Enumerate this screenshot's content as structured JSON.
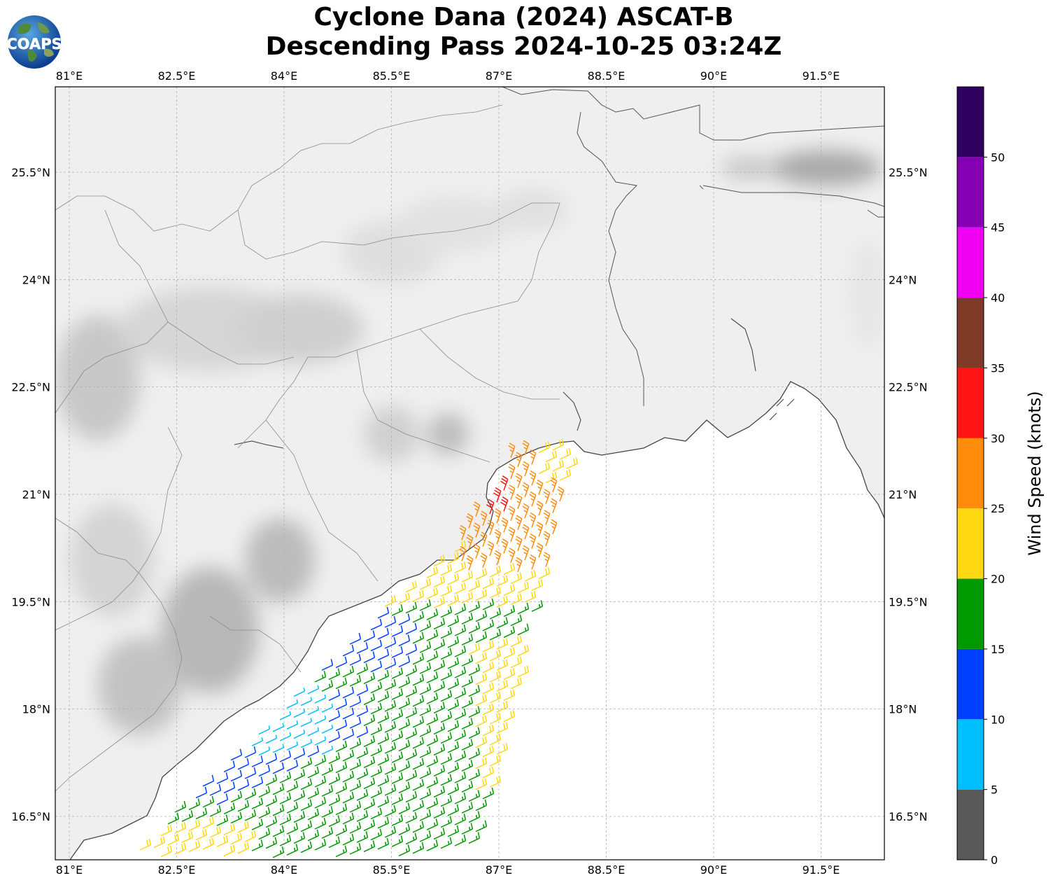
{
  "title": {
    "line1": "Cyclone Dana (2024) ASCAT-B",
    "line2": "Descending Pass 2024-10-25 03:24Z"
  },
  "logo": {
    "label": "COAPS",
    "icon": "globe-logo-icon"
  },
  "map": {
    "lon_ticks": [
      "81°E",
      "82.5°E",
      "84°E",
      "85.5°E",
      "87°E",
      "88.5°E",
      "90°E",
      "91.5°E"
    ],
    "lon_values": [
      81,
      82.5,
      84,
      85.5,
      87,
      88.5,
      90,
      91.5
    ],
    "lat_ticks": [
      "25.5°N",
      "24°N",
      "22.5°N",
      "21°N",
      "19.5°N",
      "18°N",
      "16.5°N"
    ],
    "lat_values": [
      25.5,
      24,
      22.5,
      21,
      19.5,
      18,
      16.5
    ],
    "extent": {
      "lon_min": 80.8,
      "lon_max": 92.4,
      "lat_min": 15.9,
      "lat_max": 26.7
    },
    "gridlines": true,
    "wind_field": {
      "pass": "Descending",
      "units": "knots",
      "regions": [
        {
          "area": "western swath near 83-85°E, 17-18°N",
          "speed_range_kt": [
            5,
            15
          ]
        },
        {
          "area": "open bay 84-87.5°E, 16-19°N",
          "speed_range_kt": [
            15,
            20
          ]
        },
        {
          "area": "eastern swath edge 87-87.5°E, 16.5-18.5°N",
          "speed_range_kt": [
            20,
            25
          ]
        },
        {
          "area": "coastal band 85.5-87.5°E, 19.5-20°N",
          "speed_range_kt": [
            20,
            25
          ]
        },
        {
          "area": "near coast 87-88°E, 20-21.5°N",
          "speed_range_kt": [
            25,
            30
          ]
        },
        {
          "area": "core near 87°E, 20.9°N",
          "speed_range_kt": [
            30,
            35
          ]
        }
      ]
    }
  },
  "colorbar": {
    "label": "Wind Speed (knots)",
    "ticks": [
      "0",
      "5",
      "10",
      "15",
      "20",
      "25",
      "30",
      "35",
      "40",
      "45",
      "50"
    ],
    "bins": [
      {
        "min": 0,
        "max": 5,
        "color": "#595959"
      },
      {
        "min": 5,
        "max": 10,
        "color": "#00bfff"
      },
      {
        "min": 10,
        "max": 15,
        "color": "#0040ff"
      },
      {
        "min": 15,
        "max": 20,
        "color": "#009900"
      },
      {
        "min": 20,
        "max": 25,
        "color": "#ffd814"
      },
      {
        "min": 25,
        "max": 30,
        "color": "#ff8c0a"
      },
      {
        "min": 30,
        "max": 35,
        "color": "#ff1414"
      },
      {
        "min": 35,
        "max": 40,
        "color": "#7f3a28"
      },
      {
        "min": 40,
        "max": 45,
        "color": "#f000f0"
      },
      {
        "min": 45,
        "max": 50,
        "color": "#8500b3"
      },
      {
        "min": 50,
        "max": 55,
        "color": "#2e0060"
      }
    ]
  }
}
